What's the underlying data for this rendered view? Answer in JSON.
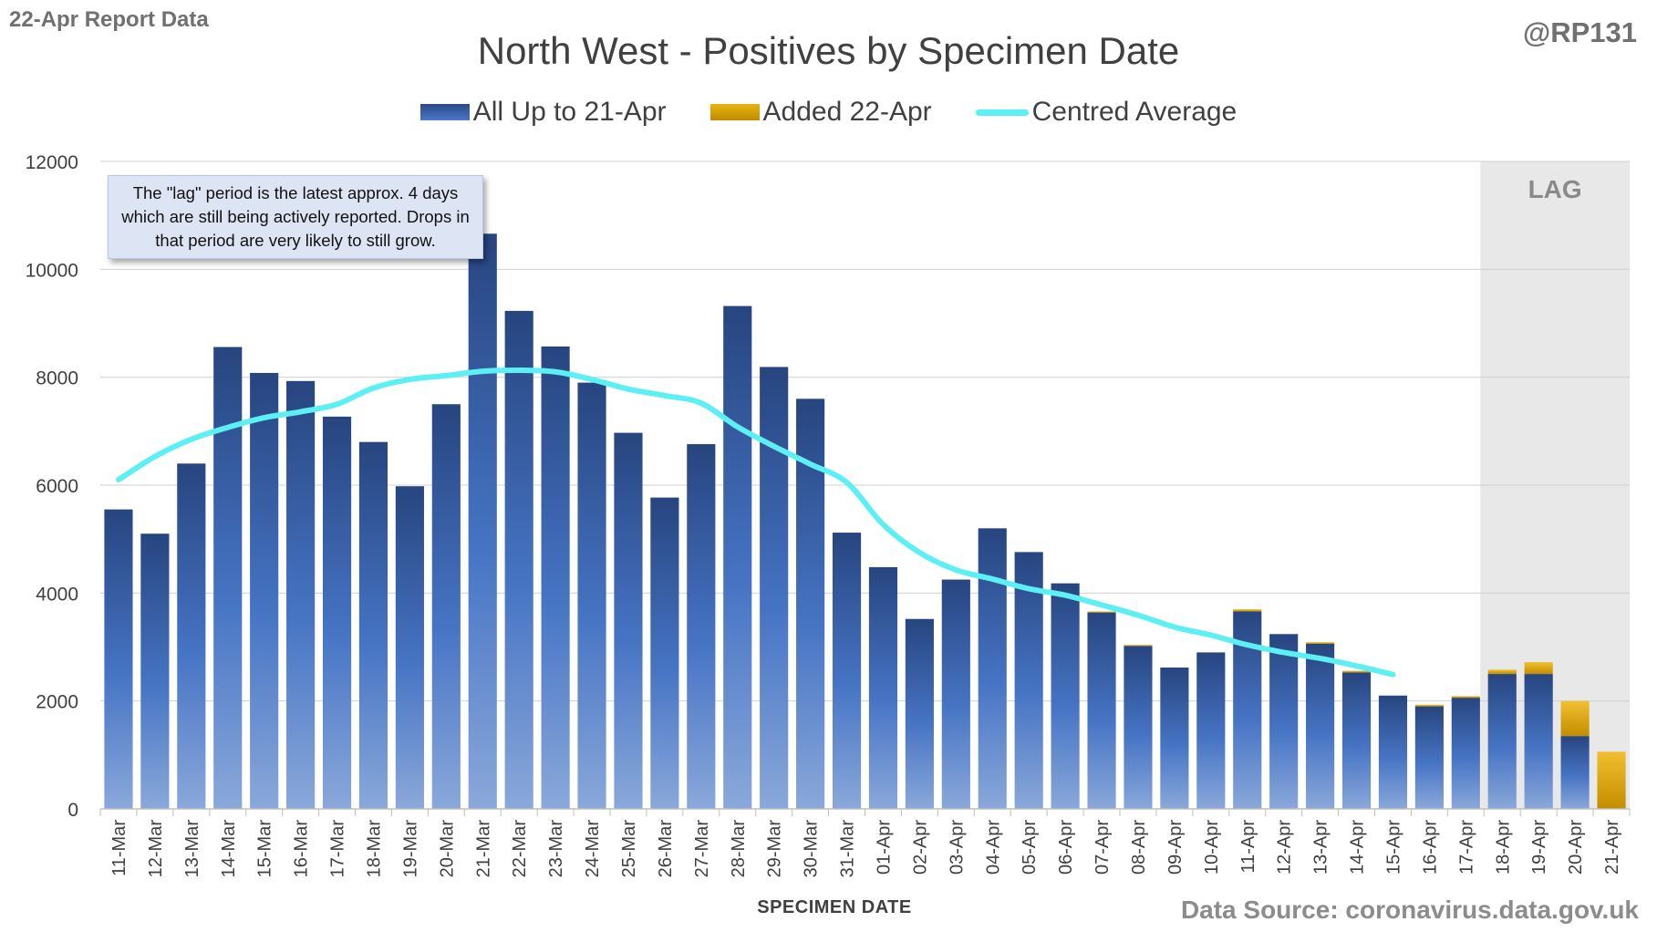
{
  "header": {
    "report_label": "22-Apr Report Data",
    "author": "@RP131",
    "source": "Data Source: coronavirus.data.gov.uk"
  },
  "annotation": "The \"lag\" period is the latest approx. 4 days which are still being actively reported. Drops in that period are very likely to still grow.",
  "colors": {
    "base_bar": "#2f5597",
    "added_bar": "#e3ad0d",
    "average_line": "#5cf0f4",
    "lag_band": "#e8e8e8"
  },
  "chart_data": {
    "type": "bar",
    "stacked": true,
    "title": "North West - Positives by Specimen Date",
    "xlabel": "SPECIMEN DATE",
    "ylabel": "",
    "ylim": [
      0,
      12000
    ],
    "yticks": [
      0,
      2000,
      4000,
      6000,
      8000,
      10000,
      12000
    ],
    "grid": true,
    "legend_position": "top",
    "shaded_region": {
      "label": "LAG",
      "from": "18-Apr",
      "to": "21-Apr"
    },
    "categories": [
      "11-Mar",
      "12-Mar",
      "13-Mar",
      "14-Mar",
      "15-Mar",
      "16-Mar",
      "17-Mar",
      "18-Mar",
      "19-Mar",
      "20-Mar",
      "21-Mar",
      "22-Mar",
      "23-Mar",
      "24-Mar",
      "25-Mar",
      "26-Mar",
      "27-Mar",
      "28-Mar",
      "29-Mar",
      "30-Mar",
      "31-Mar",
      "01-Apr",
      "02-Apr",
      "03-Apr",
      "04-Apr",
      "05-Apr",
      "06-Apr",
      "07-Apr",
      "08-Apr",
      "09-Apr",
      "10-Apr",
      "11-Apr",
      "12-Apr",
      "13-Apr",
      "14-Apr",
      "15-Apr",
      "16-Apr",
      "17-Apr",
      "18-Apr",
      "19-Apr",
      "20-Apr",
      "21-Apr"
    ],
    "series": [
      {
        "name": "All Up to 21-Apr",
        "values": [
          5550,
          5100,
          6400,
          8560,
          8080,
          7930,
          7270,
          6800,
          5980,
          7500,
          10660,
          9230,
          8570,
          7900,
          6970,
          5770,
          6760,
          9320,
          8190,
          7600,
          5120,
          4480,
          3520,
          4250,
          5200,
          4760,
          4180,
          3640,
          3020,
          2620,
          2900,
          3660,
          3240,
          3060,
          2530,
          2100,
          1900,
          2060,
          2500,
          2500,
          1350,
          0
        ]
      },
      {
        "name": "Added 22-Apr",
        "values": [
          0,
          0,
          0,
          0,
          0,
          0,
          0,
          0,
          0,
          0,
          0,
          0,
          0,
          0,
          0,
          0,
          0,
          0,
          0,
          0,
          0,
          0,
          0,
          0,
          0,
          0,
          0,
          20,
          20,
          0,
          0,
          40,
          0,
          30,
          30,
          0,
          30,
          30,
          80,
          220,
          650,
          1060
        ]
      },
      {
        "name": "Centred Average",
        "type": "line",
        "values": [
          6100,
          6530,
          6850,
          7070,
          7250,
          7360,
          7500,
          7800,
          7960,
          8030,
          8110,
          8130,
          8100,
          7960,
          7780,
          7660,
          7520,
          7080,
          6720,
          6390,
          6050,
          5270,
          4750,
          4430,
          4260,
          4080,
          3960,
          3780,
          3590,
          3370,
          3220,
          3040,
          2900,
          2790,
          2650,
          2490,
          null,
          null,
          null,
          null,
          null,
          null
        ]
      }
    ]
  }
}
